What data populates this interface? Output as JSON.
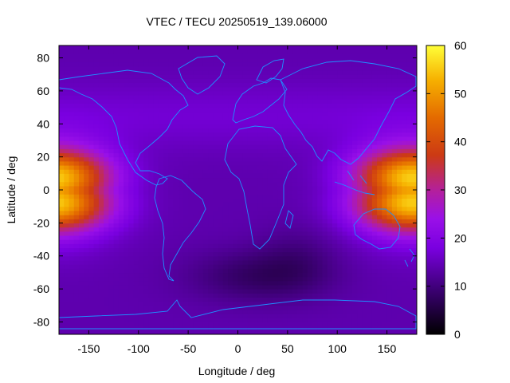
{
  "chart_data": {
    "type": "heatmap",
    "title": "VTEC / TECU 20250519_139.06000",
    "xlabel": "Longitude / deg",
    "ylabel": "Latitude / deg",
    "xlim": [
      -180,
      180
    ],
    "ylim": [
      -87.5,
      87.5
    ],
    "xticks": [
      -150,
      -100,
      -50,
      0,
      50,
      100,
      150
    ],
    "yticks": [
      -80,
      -60,
      -40,
      -20,
      0,
      20,
      40,
      60,
      80
    ],
    "colorbar": {
      "range": [
        0,
        60
      ],
      "ticks": [
        0,
        10,
        20,
        30,
        40,
        50,
        60
      ],
      "palette": "black-purple-red-orange-yellow"
    },
    "grid": {
      "lon_step": 5,
      "lat_step": 2.5
    },
    "overlay": "coastlines",
    "features": [
      {
        "name": "crest-west",
        "lon": -160,
        "lat": 5,
        "value": 58
      },
      {
        "name": "crest-east",
        "lon": 180,
        "lat": 2,
        "value": 58
      },
      {
        "name": "background-min",
        "lon": 30,
        "lat": -55,
        "value": 8
      }
    ]
  }
}
